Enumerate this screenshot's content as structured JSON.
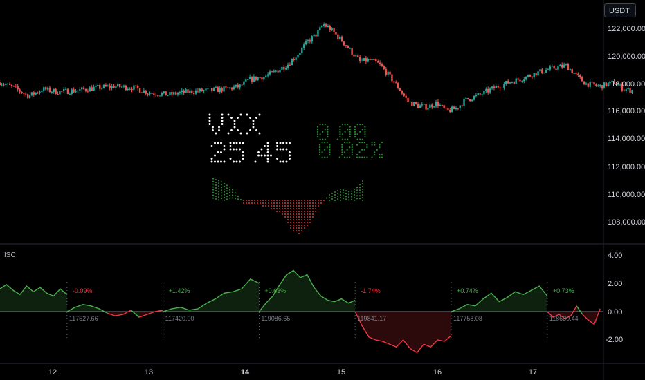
{
  "currency_button": "USDT",
  "oscillator": {
    "title": "ISC"
  },
  "price_axis": {
    "ticks": [
      "122,000.00",
      "120,000.00",
      "118,000.00",
      "116,000.00",
      "114,000.00",
      "112,000.00",
      "110,000.00",
      "108,000.00"
    ]
  },
  "osc_axis": {
    "ticks": [
      "4.00",
      "2.00",
      "0.00",
      "-2.00"
    ]
  },
  "date_axis": {
    "ticks": [
      "12",
      "13",
      "14",
      "15",
      "16",
      "17"
    ],
    "bold": "14"
  },
  "dot_panel": {
    "symbol": "VXX",
    "value": "25.45",
    "change_abs": "0.00",
    "change_pct": "0.02%"
  },
  "sessions": [
    {
      "pct": "-0.09%",
      "anchor": "117527.66",
      "dir": "down"
    },
    {
      "pct": "+1.42%",
      "anchor": "117420.00",
      "dir": "up"
    },
    {
      "pct": "+0.63%",
      "anchor": "119086.65",
      "dir": "up"
    },
    {
      "pct": "-1.74%",
      "anchor": "119841.17",
      "dir": "down"
    },
    {
      "pct": "+0.74%",
      "anchor": "117758.08",
      "dir": "up"
    },
    {
      "pct": "+0.73%",
      "anchor": "118630.44",
      "dir": "up"
    }
  ],
  "colors": {
    "up": "#26a69a",
    "down": "#ef5350",
    "osc_up": "#4caf50",
    "osc_down": "#f23645",
    "background": "#000000"
  },
  "chart_data": {
    "type": "candlestick+line",
    "price_ylim": [
      106500,
      123500
    ],
    "close_path": [
      [
        11.45,
        118300
      ],
      [
        11.6,
        117900
      ],
      [
        11.75,
        117300
      ],
      [
        11.9,
        117800
      ],
      [
        12.05,
        117600
      ],
      [
        12.25,
        117700
      ],
      [
        12.45,
        117900
      ],
      [
        12.65,
        118000
      ],
      [
        12.85,
        117900
      ],
      [
        13.0,
        117550
      ],
      [
        13.2,
        117400
      ],
      [
        13.4,
        117600
      ],
      [
        13.6,
        117700
      ],
      [
        13.8,
        117800
      ],
      [
        13.95,
        118000
      ],
      [
        14.05,
        118500
      ],
      [
        14.2,
        118700
      ],
      [
        14.3,
        119000
      ],
      [
        14.45,
        119600
      ],
      [
        14.55,
        120300
      ],
      [
        14.65,
        121200
      ],
      [
        14.75,
        121800
      ],
      [
        14.82,
        122500
      ],
      [
        14.88,
        122200
      ],
      [
        15.0,
        121400
      ],
      [
        15.1,
        120600
      ],
      [
        15.2,
        119800
      ],
      [
        15.3,
        119900
      ],
      [
        15.4,
        119600
      ],
      [
        15.5,
        118800
      ],
      [
        15.6,
        117900
      ],
      [
        15.7,
        116900
      ],
      [
        15.8,
        116600
      ],
      [
        15.9,
        116500
      ],
      [
        16.0,
        116800
      ],
      [
        16.1,
        116200
      ],
      [
        16.2,
        116400
      ],
      [
        16.3,
        117000
      ],
      [
        16.45,
        117400
      ],
      [
        16.6,
        117900
      ],
      [
        16.75,
        118300
      ],
      [
        16.9,
        118600
      ],
      [
        17.05,
        119000
      ],
      [
        17.2,
        119300
      ],
      [
        17.35,
        119500
      ],
      [
        17.45,
        118800
      ],
      [
        17.55,
        118200
      ],
      [
        17.7,
        118000
      ],
      [
        17.85,
        118300
      ],
      [
        17.95,
        117800
      ],
      [
        18.05,
        117700
      ]
    ],
    "oscillator_series": [
      {
        "x0": 11.45,
        "x1": 12.15,
        "values": [
          1.6,
          1.9,
          1.5,
          1.2,
          1.8,
          1.4,
          1.7,
          1.3,
          1.1,
          1.6,
          1.2
        ]
      },
      {
        "x0": 12.15,
        "x1": 13.15,
        "values": [
          0.0,
          0.3,
          0.5,
          0.4,
          0.2,
          -0.1,
          -0.3,
          -0.2,
          0.1,
          -0.4,
          -0.2,
          0.0,
          0.1
        ]
      },
      {
        "x0": 13.15,
        "x1": 14.15,
        "values": [
          0.0,
          0.2,
          0.3,
          0.1,
          0.2,
          0.6,
          0.9,
          1.3,
          1.4,
          1.6,
          2.3,
          2.0
        ]
      },
      {
        "x0": 14.15,
        "x1": 15.15,
        "values": [
          0.0,
          0.6,
          1.1,
          1.9,
          2.6,
          2.9,
          2.4,
          2.6,
          1.7,
          1.1,
          0.8,
          0.7,
          0.9,
          0.6,
          0.8
        ]
      },
      {
        "x0": 15.15,
        "x1": 16.15,
        "values": [
          0.0,
          -1.0,
          -1.8,
          -2.0,
          -2.1,
          -2.3,
          -2.5,
          -2.0,
          -2.6,
          -2.9,
          -2.3,
          -2.5,
          -2.0,
          -2.1,
          -1.7
        ]
      },
      {
        "x0": 16.15,
        "x1": 17.15,
        "values": [
          0.0,
          0.2,
          0.5,
          0.4,
          0.9,
          1.3,
          0.7,
          1.0,
          1.4,
          1.2,
          1.5,
          1.8,
          1.1
        ]
      },
      {
        "x0": 17.15,
        "x1": 17.7,
        "values": [
          0.0,
          -0.4,
          -0.2,
          -0.5,
          -0.3,
          0.4,
          -0.2,
          -0.6,
          -0.9,
          0.2
        ]
      }
    ]
  }
}
